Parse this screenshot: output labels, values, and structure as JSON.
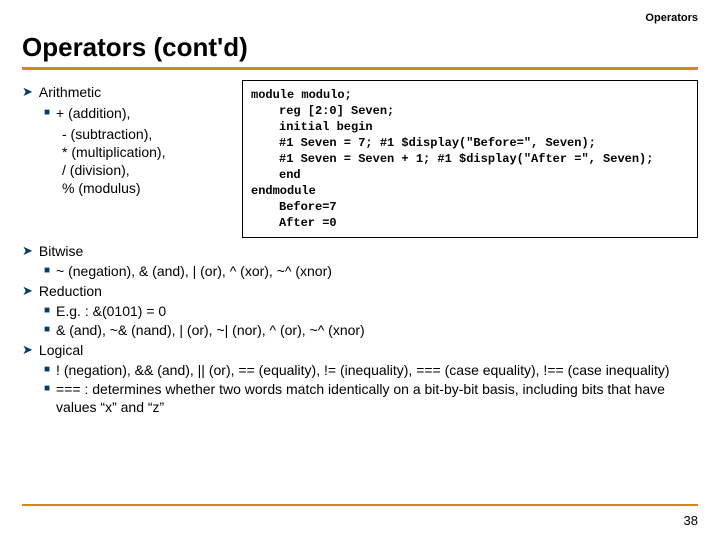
{
  "colors": {
    "accent": "#d08a1a",
    "arrow": "#0a3a6a",
    "text": "#000000",
    "bg": "#ffffff"
  },
  "header": {
    "category": "Operators",
    "title": "Operators (cont'd)"
  },
  "arith": {
    "heading": "Arithmetic",
    "first": "+ (addition),",
    "lines": [
      "- (subtraction),",
      "* (multiplication),",
      "/ (division),",
      "% (modulus)"
    ]
  },
  "code": {
    "l1": "module modulo;",
    "l2": "reg [2:0] Seven;",
    "l3": "initial begin",
    "l4": "#1 Seven = 7; #1 $display(\"Before=\", Seven);",
    "l5": "#1 Seven = Seven + 1; #1 $display(\"After =\", Seven);",
    "l6": "end",
    "l7": "endmodule",
    "l8": "Before=7",
    "l9": "After =0"
  },
  "bitwise": {
    "heading": "Bitwise",
    "line": "~ (negation), & (and), | (or), ^ (xor), ~^ (xnor)"
  },
  "reduction": {
    "heading": "Reduction",
    "eg": "E.g. : &(0101) = 0",
    "ops": "& (and), ~& (nand), | (or), ~| (nor), ^ (or), ~^ (xnor)"
  },
  "logical": {
    "heading": "Logical",
    "l1": "! (negation), && (and), || (or), == (equality), != (inequality), === (case equality), !== (case inequality)",
    "l2": "=== : determines whether two words match identically on a bit-by-bit basis, including bits that have values “x” and “z”"
  },
  "page": "38"
}
